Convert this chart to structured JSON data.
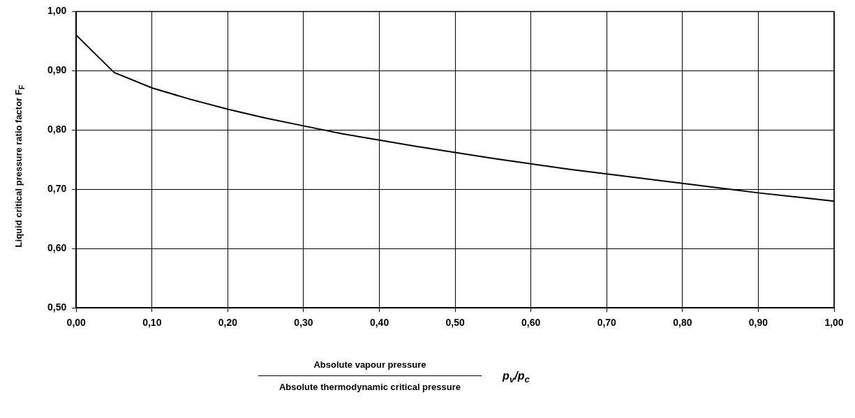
{
  "chart_data": {
    "type": "line",
    "xlabel": "Absolute vapour pressure",
    "ylabel": "Liquid critical pressure ratio factor F$_{F}$",
    "annotations": [
      "Absolute thermodynamic critical pressure",
      "p$_{v}$/p$_{c}$"
    ],
    "x": [
      0,
      0.05,
      0.1,
      0.15,
      0.2,
      0.25,
      0.3,
      0.35,
      0.4,
      0.45,
      0.5,
      0.55,
      0.6,
      0.65,
      0.7,
      0.75,
      0.8,
      0.85,
      0.9,
      0.95,
      1
    ],
    "series": [
      {
        "color": "#000000",
        "values": [
          0.96,
          0.897,
          0.871,
          0.852,
          0.835,
          0.82,
          0.807,
          0.794,
          0.783,
          0.772,
          0.762,
          0.752,
          0.743,
          0.734,
          0.726,
          0.718,
          0.71,
          0.702,
          0.694,
          0.687,
          0.68
        ]
      }
    ],
    "xlim": [
      0,
      1
    ],
    "ylim": [
      0.5,
      1
    ],
    "xticks": [
      {
        "value": 0,
        "label": "0,00"
      },
      {
        "value": 0.1,
        "label": "0,10"
      },
      {
        "value": 0.2,
        "label": "0,20"
      },
      {
        "value": 0.3,
        "label": "0,30"
      },
      {
        "value": 0.4,
        "label": "0,40"
      },
      {
        "value": 0.5,
        "label": "0,50"
      },
      {
        "value": 0.6,
        "label": "0,60"
      },
      {
        "value": 0.7,
        "label": "0,70"
      },
      {
        "value": 0.8,
        "label": "0,80"
      },
      {
        "value": 0.9,
        "label": "0,90"
      },
      {
        "value": 1,
        "label": "1,00"
      }
    ],
    "yticks": [
      {
        "value": 0.5,
        "label": "0,50"
      },
      {
        "value": 0.6,
        "label": "0,60"
      },
      {
        "value": 0.7,
        "label": "0,70"
      },
      {
        "value": 0.8,
        "label": "0,80"
      },
      {
        "value": 0.9,
        "label": "0,90"
      },
      {
        "value": 1,
        "label": "1,00"
      }
    ],
    "grid": true,
    "legend": false,
    "marker": "none",
    "line_style": "solid"
  }
}
